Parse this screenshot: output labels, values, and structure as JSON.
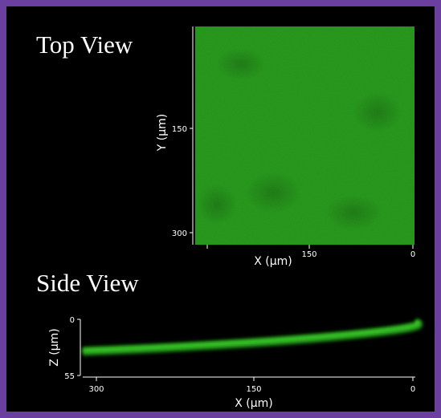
{
  "top_view": {
    "title": "Top View",
    "x_label": "X (µm)",
    "y_label": "Y (µm)",
    "x_ticks": [
      150,
      0
    ],
    "y_ticks": [
      150,
      300
    ]
  },
  "side_view": {
    "title": "Side View",
    "x_label": "X (µm)",
    "z_label": "Z (µm)",
    "x_ticks": [
      300,
      150,
      0
    ],
    "z_ticks": [
      0,
      55
    ]
  }
}
